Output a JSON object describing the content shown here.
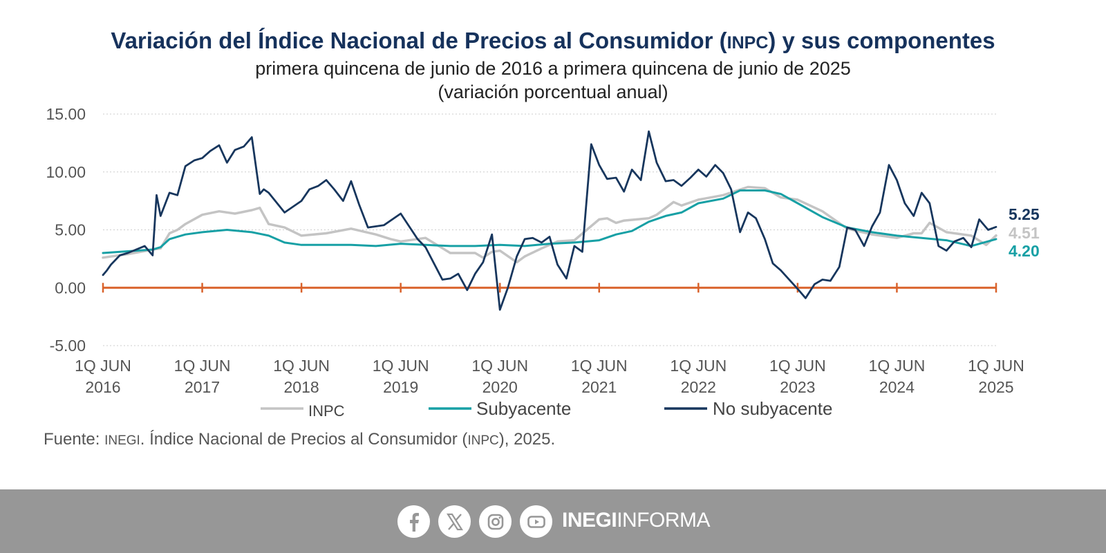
{
  "header": {
    "title_part1": "Variación del Índice Nacional de Precios al Consumidor (",
    "title_abbr": "INPC",
    "title_part2": ") y sus componentes",
    "subtitle": "primera quincena de junio de 2016 a primera quincena de junio de 2025",
    "units": "(variación porcentual anual)"
  },
  "colors": {
    "title": "#16325c",
    "inpc": "#c4c4c4",
    "subyacente": "#17a0a5",
    "no_subyacente": "#17365d",
    "zero_axis": "#d9622b",
    "grid": "#cccccc"
  },
  "chart_data": {
    "type": "line",
    "title": "Variación del Índice Nacional de Precios al Consumidor (INPC) y sus componentes",
    "subtitle": "primera quincena de junio de 2016 a primera quincena de junio de 2025",
    "ylabel": "(variación porcentual anual)",
    "xlabel": "",
    "ylim": [
      -5,
      15
    ],
    "y_ticks": [
      15,
      10,
      5,
      0,
      -5
    ],
    "y_tick_labels": [
      "15.00",
      "10.00",
      "5.00",
      "0.00",
      "-5.00"
    ],
    "x_tick_labels": [
      [
        "1Q JUN",
        "2016"
      ],
      [
        "1Q JUN",
        "2017"
      ],
      [
        "1Q JUN",
        "2018"
      ],
      [
        "1Q JUN",
        "2019"
      ],
      [
        "1Q JUN",
        "2020"
      ],
      [
        "1Q JUN",
        "2021"
      ],
      [
        "1Q JUN",
        "2022"
      ],
      [
        "1Q JUN",
        "2023"
      ],
      [
        "1Q JUN",
        "2024"
      ],
      [
        "1Q JUN",
        "2025"
      ]
    ],
    "x_ticks": [
      2016,
      2017,
      2018,
      2019,
      2020,
      2021,
      2022,
      2023,
      2024,
      2025
    ],
    "grid": true,
    "legend_position": "bottom",
    "series": [
      {
        "name": "INPC",
        "final_label": "4.51",
        "x": [
          2016.0,
          2016.25,
          2016.5,
          2016.58,
          2016.67,
          2016.75,
          2016.83,
          2017.0,
          2017.17,
          2017.33,
          2017.5,
          2017.58,
          2017.67,
          2017.83,
          2018.0,
          2018.25,
          2018.5,
          2018.75,
          2018.9,
          2019.0,
          2019.25,
          2019.5,
          2019.75,
          2019.83,
          2019.92,
          2020.0,
          2020.17,
          2020.25,
          2020.42,
          2020.58,
          2020.75,
          2021.0,
          2021.08,
          2021.17,
          2021.25,
          2021.5,
          2021.58,
          2021.75,
          2021.83,
          2022.0,
          2022.25,
          2022.5,
          2022.67,
          2022.83,
          2023.0,
          2023.25,
          2023.5,
          2023.75,
          2024.0,
          2024.17,
          2024.25,
          2024.33,
          2024.5,
          2024.75,
          2024.9,
          2025.0
        ],
        "y": [
          2.6,
          2.9,
          3.3,
          3.4,
          4.7,
          5.0,
          5.5,
          6.3,
          6.6,
          6.4,
          6.7,
          6.9,
          5.5,
          5.2,
          4.5,
          4.7,
          5.1,
          4.6,
          4.2,
          4.0,
          4.3,
          3.0,
          3.0,
          2.6,
          3.1,
          3.2,
          2.2,
          2.7,
          3.4,
          4.0,
          4.1,
          5.9,
          6.0,
          5.6,
          5.8,
          6.0,
          6.3,
          7.4,
          7.1,
          7.6,
          8.0,
          8.7,
          8.6,
          7.8,
          7.6,
          6.6,
          5.1,
          4.6,
          4.3,
          4.7,
          4.7,
          5.6,
          4.8,
          4.5,
          3.7,
          4.51
        ]
      },
      {
        "name": "Subyacente",
        "final_label": "4.20",
        "x": [
          2016.0,
          2016.5,
          2016.58,
          2016.67,
          2016.83,
          2017.0,
          2017.25,
          2017.5,
          2017.67,
          2017.83,
          2018.0,
          2018.5,
          2018.75,
          2019.0,
          2019.25,
          2019.5,
          2019.75,
          2020.0,
          2020.25,
          2020.5,
          2020.75,
          2021.0,
          2021.17,
          2021.33,
          2021.5,
          2021.67,
          2021.83,
          2022.0,
          2022.25,
          2022.42,
          2022.5,
          2022.67,
          2022.83,
          2023.0,
          2023.25,
          2023.5,
          2023.75,
          2024.0,
          2024.25,
          2024.5,
          2024.75,
          2025.0
        ],
        "y": [
          3.0,
          3.3,
          3.5,
          4.2,
          4.6,
          4.8,
          5.0,
          4.8,
          4.5,
          3.9,
          3.7,
          3.7,
          3.6,
          3.8,
          3.7,
          3.6,
          3.6,
          3.7,
          3.6,
          3.8,
          3.9,
          4.1,
          4.6,
          4.9,
          5.7,
          6.2,
          6.5,
          7.3,
          7.7,
          8.4,
          8.4,
          8.4,
          8.1,
          7.3,
          6.1,
          5.2,
          4.8,
          4.5,
          4.3,
          4.1,
          3.6,
          4.2
        ]
      },
      {
        "name": "No subyacente",
        "final_label": "5.25",
        "x": [
          2016.0,
          2016.04,
          2016.08,
          2016.17,
          2016.25,
          2016.42,
          2016.5,
          2016.54,
          2016.58,
          2016.67,
          2016.75,
          2016.83,
          2016.92,
          2017.0,
          2017.08,
          2017.17,
          2017.25,
          2017.33,
          2017.42,
          2017.5,
          2017.58,
          2017.62,
          2017.67,
          2017.83,
          2018.0,
          2018.08,
          2018.17,
          2018.25,
          2018.33,
          2018.42,
          2018.5,
          2018.58,
          2018.67,
          2018.83,
          2019.0,
          2019.17,
          2019.25,
          2019.42,
          2019.5,
          2019.58,
          2019.67,
          2019.75,
          2019.83,
          2019.92,
          2020.0,
          2020.08,
          2020.17,
          2020.25,
          2020.33,
          2020.42,
          2020.5,
          2020.58,
          2020.67,
          2020.75,
          2020.83,
          2020.92,
          2021.0,
          2021.08,
          2021.17,
          2021.25,
          2021.33,
          2021.42,
          2021.5,
          2021.58,
          2021.67,
          2021.75,
          2021.83,
          2021.92,
          2022.0,
          2022.08,
          2022.17,
          2022.25,
          2022.33,
          2022.42,
          2022.5,
          2022.58,
          2022.67,
          2022.75,
          2022.83,
          2023.0,
          2023.08,
          2023.17,
          2023.25,
          2023.33,
          2023.42,
          2023.5,
          2023.58,
          2023.67,
          2023.75,
          2023.83,
          2023.92,
          2024.0,
          2024.08,
          2024.17,
          2024.25,
          2024.33,
          2024.42,
          2024.5,
          2024.58,
          2024.67,
          2024.75,
          2024.83,
          2024.92,
          2025.0
        ],
        "y": [
          1.1,
          1.5,
          2.0,
          2.8,
          3.0,
          3.6,
          2.8,
          8.0,
          6.2,
          8.2,
          8.0,
          10.5,
          11.0,
          11.2,
          11.8,
          12.3,
          10.8,
          11.9,
          12.2,
          13.0,
          8.1,
          8.5,
          8.2,
          6.5,
          7.5,
          8.5,
          8.8,
          9.3,
          8.5,
          7.5,
          9.2,
          7.2,
          5.2,
          5.4,
          6.4,
          4.2,
          3.5,
          0.7,
          0.8,
          1.2,
          -0.2,
          1.2,
          2.2,
          4.6,
          -1.9,
          0.0,
          2.7,
          4.2,
          4.3,
          3.9,
          4.4,
          2.0,
          0.8,
          3.6,
          3.1,
          12.4,
          10.6,
          9.4,
          9.5,
          8.3,
          10.2,
          9.3,
          13.5,
          10.8,
          9.2,
          9.3,
          8.8,
          9.5,
          10.2,
          9.6,
          10.6,
          9.9,
          8.5,
          4.8,
          6.5,
          6.0,
          4.2,
          2.1,
          1.5,
          -0.1,
          -0.9,
          0.3,
          0.7,
          0.6,
          1.8,
          5.2,
          5.0,
          3.6,
          5.3,
          6.5,
          10.6,
          9.3,
          7.3,
          6.2,
          8.2,
          7.3,
          3.6,
          3.2,
          4.0,
          4.3,
          3.5,
          5.9,
          5.0,
          5.25
        ]
      }
    ]
  },
  "legend": [
    {
      "label": "INPC"
    },
    {
      "label": "Subyacente"
    },
    {
      "label": "No subyacente"
    }
  ],
  "source": {
    "prefix": "Fuente: ",
    "org": "INEGI",
    "middle": ". Índice Nacional de Precios al Consumidor (",
    "abbr": "INPC",
    "suffix": "), 2025."
  },
  "footer": {
    "icons": [
      "facebook-icon",
      "x-icon",
      "instagram-icon",
      "youtube-icon"
    ],
    "brand_bold": "INEGI",
    "brand_light": "INFORMA"
  }
}
